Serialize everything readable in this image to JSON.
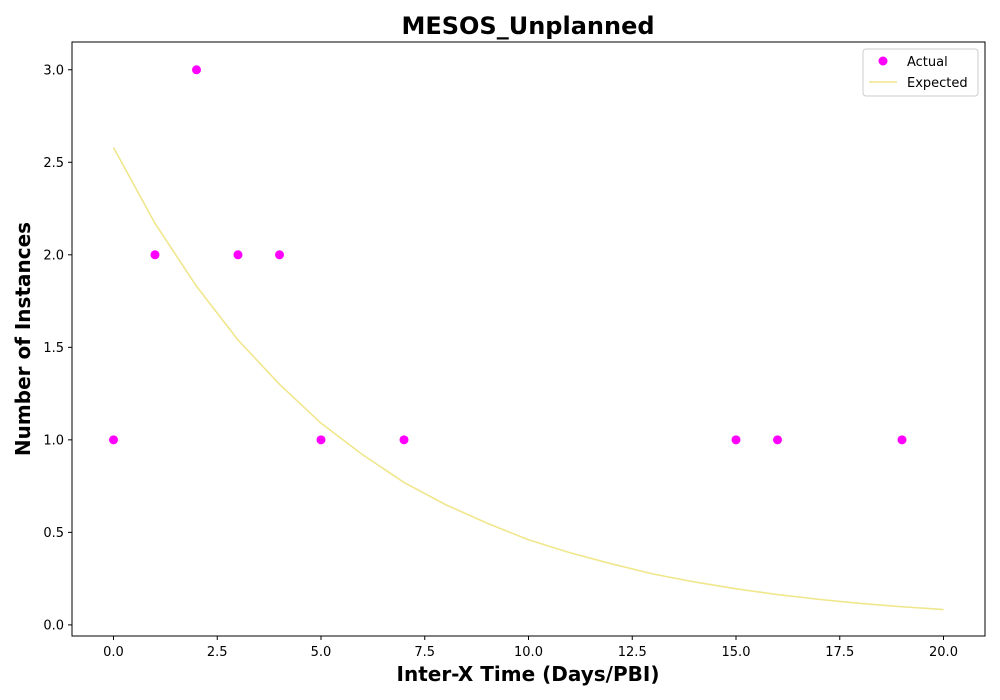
{
  "chart_data": {
    "type": "scatter",
    "title": "MESOS_Unplanned",
    "xlabel": "Inter-X Time (Days/PBI)",
    "ylabel": "Number of Instances",
    "xlim": [
      -1.0,
      21.0
    ],
    "ylim": [
      -0.06,
      3.15
    ],
    "x_ticks": [
      0.0,
      2.5,
      5.0,
      7.5,
      10.0,
      12.5,
      15.0,
      17.5,
      20.0
    ],
    "y_ticks": [
      0.0,
      0.5,
      1.0,
      1.5,
      2.0,
      2.5,
      3.0
    ],
    "x_tick_labels": [
      "0.0",
      "2.5",
      "5.0",
      "7.5",
      "10.0",
      "12.5",
      "15.0",
      "17.5",
      "20.0"
    ],
    "y_tick_labels": [
      "0.0",
      "0.5",
      "1.0",
      "1.5",
      "2.0",
      "2.5",
      "3.0"
    ],
    "grid": false,
    "legend_position": "top-right",
    "series": [
      {
        "name": "Actual",
        "type": "scatter",
        "color": "#ff00ff",
        "x": [
          0,
          1,
          2,
          3,
          4,
          5,
          7,
          15,
          16,
          19
        ],
        "y": [
          1,
          2,
          3,
          2,
          2,
          1,
          1,
          1,
          1,
          1
        ]
      },
      {
        "name": "Expected",
        "type": "line",
        "color": "#f0e68c",
        "x": [
          0,
          1,
          2,
          3,
          4,
          5,
          6,
          7,
          8,
          9,
          10,
          11,
          12,
          13,
          14,
          15,
          16,
          17,
          18,
          19,
          20
        ],
        "y": [
          2.58,
          2.17,
          1.83,
          1.54,
          1.3,
          1.09,
          0.92,
          0.77,
          0.65,
          0.55,
          0.46,
          0.39,
          0.33,
          0.275,
          0.232,
          0.195,
          0.164,
          0.138,
          0.116,
          0.098,
          0.083
        ]
      }
    ]
  }
}
